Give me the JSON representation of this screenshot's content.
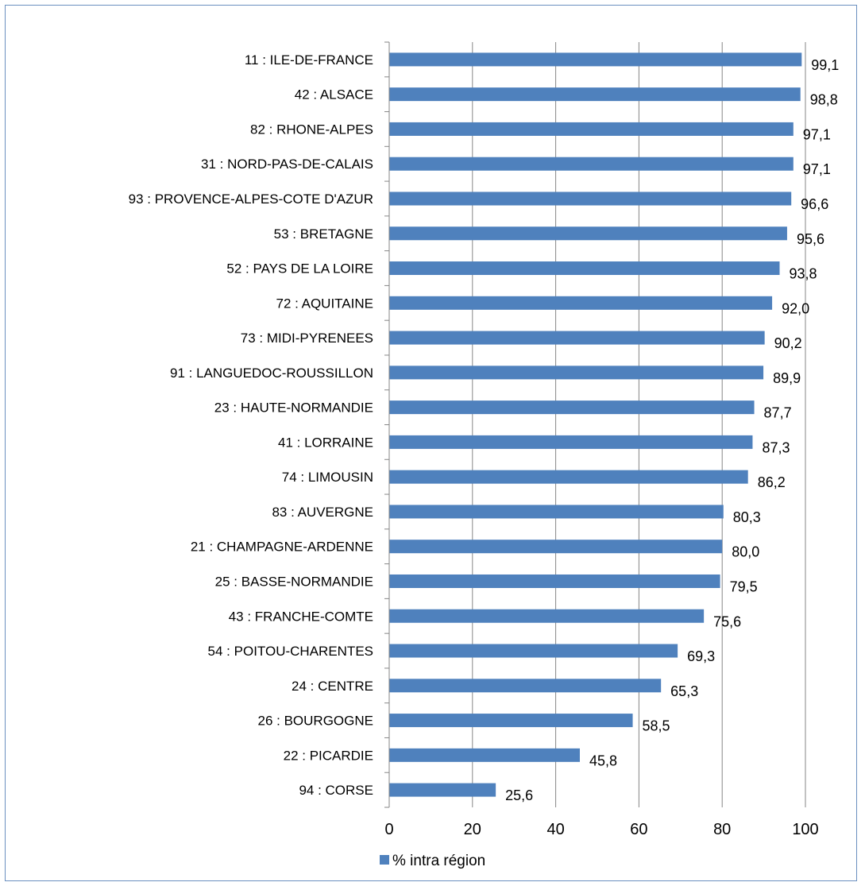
{
  "chart_data": {
    "type": "bar",
    "orientation": "horizontal",
    "categories": [
      "11 : ILE-DE-FRANCE",
      "42 : ALSACE",
      "82 : RHONE-ALPES",
      "31 : NORD-PAS-DE-CALAIS",
      "93 : PROVENCE-ALPES-COTE D'AZUR",
      "53 : BRETAGNE",
      "52 : PAYS DE LA LOIRE",
      "72 : AQUITAINE",
      "73 : MIDI-PYRENEES",
      "91 : LANGUEDOC-ROUSSILLON",
      "23 : HAUTE-NORMANDIE",
      "41 : LORRAINE",
      "74 : LIMOUSIN",
      "83 : AUVERGNE",
      "21 : CHAMPAGNE-ARDENNE",
      "25 : BASSE-NORMANDIE",
      "43 : FRANCHE-COMTE",
      "54 : POITOU-CHARENTES",
      "24 : CENTRE",
      "26 : BOURGOGNE",
      "22 : PICARDIE",
      "94 : CORSE"
    ],
    "series": [
      {
        "name": "% intra région",
        "values": [
          99.1,
          98.8,
          97.1,
          97.1,
          96.6,
          95.6,
          93.8,
          92.0,
          90.2,
          89.9,
          87.7,
          87.3,
          86.2,
          80.3,
          80.0,
          79.5,
          75.6,
          69.3,
          65.3,
          58.5,
          45.8,
          25.6
        ],
        "value_labels": [
          "99,1",
          "98,8",
          "97,1",
          "97,1",
          "96,6",
          "95,6",
          "93,8",
          "92,0",
          "90,2",
          "89,9",
          "87,7",
          "87,3",
          "86,2",
          "80,3",
          "80,0",
          "79,5",
          "75,6",
          "69,3",
          "65,3",
          "58,5",
          "45,8",
          "25,6"
        ],
        "color": "#4f81bd"
      }
    ],
    "xlim": [
      0,
      100
    ],
    "x_ticks": [
      "0",
      "20",
      "40",
      "60",
      "80",
      "100"
    ],
    "grid": true,
    "legend": "bottom-left"
  }
}
